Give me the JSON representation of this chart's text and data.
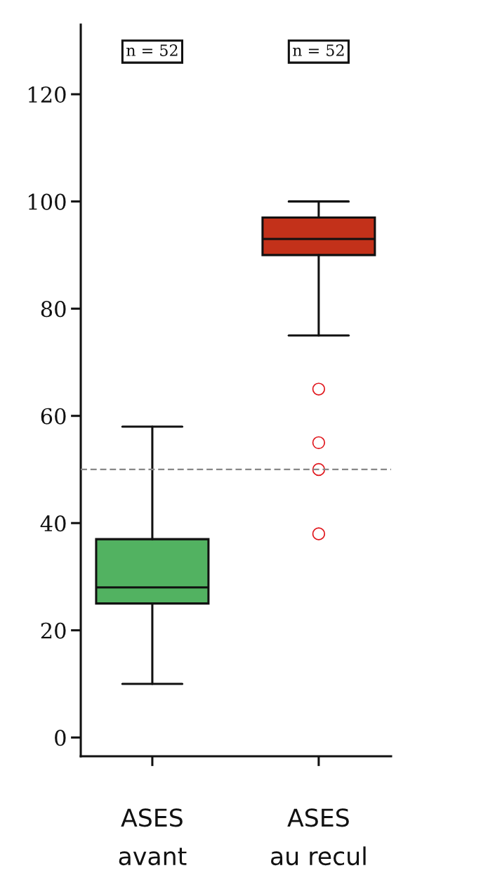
{
  "chart_data": {
    "type": "box",
    "categories": [
      "ASES\navant",
      "ASES\nau recul"
    ],
    "colors": [
      "#52b261",
      "#c3311a"
    ],
    "boxes": [
      {
        "low": 10,
        "q1": 25,
        "median": 28,
        "q3": 37,
        "high": 58
      },
      {
        "low": 75,
        "q1": 90,
        "median": 93,
        "q3": 97,
        "high": 100,
        "outliers": [
          65,
          55,
          50,
          38
        ]
      }
    ],
    "ylim": [
      -3.5,
      133
    ],
    "yticks": [
      0,
      20,
      40,
      60,
      80,
      100,
      120
    ],
    "ref_lines": [
      {
        "axis": "y",
        "value": 50,
        "color": "#888888",
        "line_style": "dashed"
      }
    ],
    "annotations": [
      "n = 52",
      "n = 52"
    ],
    "grid": false
  }
}
